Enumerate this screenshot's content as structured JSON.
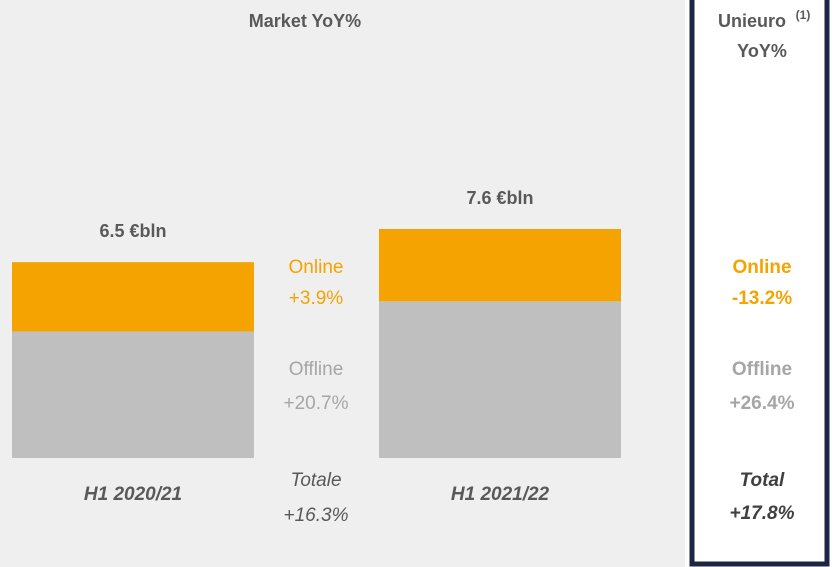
{
  "chart_data": {
    "type": "bar",
    "stacked": true,
    "title": "Market YoY%",
    "categories": [
      "H1 2020/21",
      "H1 2021/22"
    ],
    "series": [
      {
        "name": "Offline",
        "color": "#bfbfbf",
        "values": [
          4.2,
          5.2
        ]
      },
      {
        "name": "Online",
        "color": "#f5a300",
        "values": [
          2.3,
          2.4
        ]
      }
    ],
    "totals": [
      6.5,
      7.6
    ],
    "total_labels": [
      "6.5 €bln",
      "7.6 €bln"
    ],
    "market_growth": {
      "online": "+3.9%",
      "offline": "+20.7%",
      "total_label": "Totale",
      "total": "+16.3%"
    }
  },
  "unieuro": {
    "title": "Unieuro",
    "note": "(1)",
    "subtitle": "YoY%",
    "online_label": "Online",
    "online": "-13.2%",
    "offline_label": "Offline",
    "offline": "+26.4%",
    "total_label": "Total",
    "total": "+17.8%"
  }
}
